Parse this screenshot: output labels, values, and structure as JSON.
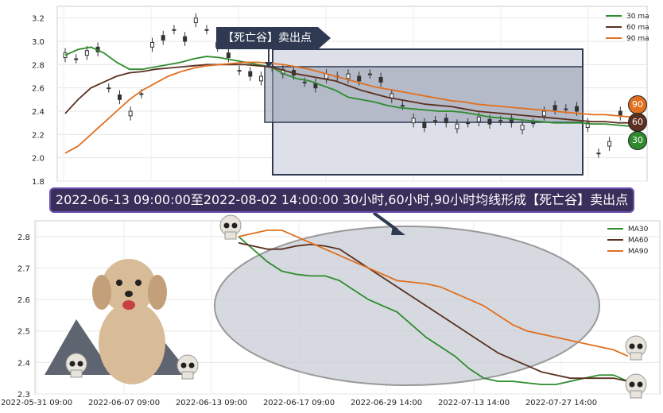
{
  "chart_data": [
    {
      "type": "line",
      "subtype": "candlestick-with-moving-averages",
      "ylim": [
        1.8,
        3.3
      ],
      "yticks": [
        "1.8",
        "2.0",
        "2.2",
        "2.4",
        "2.6",
        "2.8",
        "3.0",
        "3.2"
      ],
      "grid": true,
      "legend_position": "top-right",
      "series": [
        {
          "name": "30 ma",
          "color": "#2e8b2e",
          "values": [
            2.88,
            2.93,
            2.95,
            2.9,
            2.82,
            2.76,
            2.76,
            2.78,
            2.8,
            2.82,
            2.85,
            2.87,
            2.86,
            2.84,
            2.82,
            2.8,
            2.78,
            2.72,
            2.68,
            2.66,
            2.62,
            2.58,
            2.52,
            2.5,
            2.48,
            2.45,
            2.43,
            2.42,
            2.41,
            2.4,
            2.4,
            2.39,
            2.37,
            2.35,
            2.34,
            2.33,
            2.32,
            2.31,
            2.3,
            2.3,
            2.3,
            2.29,
            2.29,
            2.28,
            2.27
          ]
        },
        {
          "name": "60 ma",
          "color": "#5a3020",
          "values": [
            2.38,
            2.5,
            2.6,
            2.65,
            2.7,
            2.73,
            2.74,
            2.76,
            2.77,
            2.78,
            2.79,
            2.8,
            2.8,
            2.8,
            2.8,
            2.79,
            2.78,
            2.75,
            2.72,
            2.7,
            2.68,
            2.66,
            2.62,
            2.58,
            2.55,
            2.52,
            2.5,
            2.48,
            2.46,
            2.45,
            2.44,
            2.42,
            2.4,
            2.39,
            2.38,
            2.37,
            2.36,
            2.35,
            2.34,
            2.33,
            2.32,
            2.31,
            2.31,
            2.3,
            2.3
          ]
        },
        {
          "name": "90 ma",
          "color": "#e07020",
          "values": [
            2.04,
            2.1,
            2.2,
            2.3,
            2.4,
            2.5,
            2.58,
            2.64,
            2.7,
            2.74,
            2.77,
            2.79,
            2.8,
            2.81,
            2.82,
            2.82,
            2.81,
            2.8,
            2.78,
            2.76,
            2.73,
            2.7,
            2.67,
            2.64,
            2.61,
            2.59,
            2.57,
            2.55,
            2.53,
            2.51,
            2.49,
            2.48,
            2.46,
            2.45,
            2.44,
            2.43,
            2.42,
            2.41,
            2.4,
            2.39,
            2.38,
            2.37,
            2.37,
            2.36,
            2.35
          ]
        },
        {
          "name": "candles",
          "values": [
            2.9,
            2.85,
            2.88,
            2.95,
            2.6,
            2.5,
            2.4,
            2.55,
            2.95,
            3.05,
            3.1,
            3.0,
            3.2,
            3.1,
            2.95,
            2.9,
            2.75,
            2.7,
            2.7,
            2.78,
            2.72,
            2.75,
            2.65,
            2.6,
            2.72,
            2.7,
            2.68,
            2.7,
            2.72,
            2.65,
            2.55,
            2.45,
            2.3,
            2.3,
            2.32,
            2.3,
            2.29,
            2.3,
            2.31,
            2.33,
            2.32,
            2.3,
            2.28,
            2.3,
            2.36,
            2.45,
            2.42,
            2.4,
            2.3,
            2.04,
            2.1,
            2.4,
            2.3
          ]
        }
      ],
      "annotation": "【死亡谷】卖出点",
      "badges": [
        "90",
        "60",
        "30"
      ]
    },
    {
      "type": "line",
      "ylim": [
        2.3,
        2.85
      ],
      "yticks": [
        "2.3",
        "2.4",
        "2.5",
        "2.6",
        "2.7",
        "2.8"
      ],
      "xticks": [
        "2022-05-31 09:00",
        "2022-06-07 09:00",
        "2022-06-13 09:00",
        "2022-06-17 09:00",
        "2022-06-29 14:00",
        "2022-07-13 14:00",
        "2022-07-27 14:00"
      ],
      "grid": true,
      "legend_position": "top-right",
      "series": [
        {
          "name": "MA30",
          "color": "#2e8b2e",
          "values": [
            2.8,
            2.76,
            2.72,
            2.69,
            2.68,
            2.675,
            2.675,
            2.66,
            2.63,
            2.6,
            2.58,
            2.56,
            2.52,
            2.48,
            2.45,
            2.42,
            2.38,
            2.35,
            2.34,
            2.34,
            2.335,
            2.33,
            2.33,
            2.34,
            2.35,
            2.36,
            2.36,
            2.34
          ]
        },
        {
          "name": "MA60",
          "color": "#5a3020",
          "values": [
            2.78,
            2.77,
            2.76,
            2.76,
            2.77,
            2.775,
            2.77,
            2.76,
            2.73,
            2.7,
            2.67,
            2.64,
            2.61,
            2.58,
            2.55,
            2.52,
            2.49,
            2.46,
            2.43,
            2.41,
            2.39,
            2.37,
            2.36,
            2.35,
            2.35,
            2.35,
            2.35,
            2.34
          ]
        },
        {
          "name": "MA90",
          "color": "#e07020",
          "values": [
            2.8,
            2.81,
            2.82,
            2.82,
            2.8,
            2.78,
            2.76,
            2.74,
            2.72,
            2.7,
            2.68,
            2.66,
            2.655,
            2.65,
            2.64,
            2.62,
            2.6,
            2.58,
            2.55,
            2.52,
            2.5,
            2.49,
            2.48,
            2.47,
            2.46,
            2.45,
            2.44,
            2.42
          ]
        }
      ]
    }
  ],
  "banner_text": "2022-06-13 09:00:00至2022-08-02 14:00:00 30小时,60小时,90小时均线形成【死亡谷】卖出点",
  "tag_text": "【死亡谷】卖出点"
}
